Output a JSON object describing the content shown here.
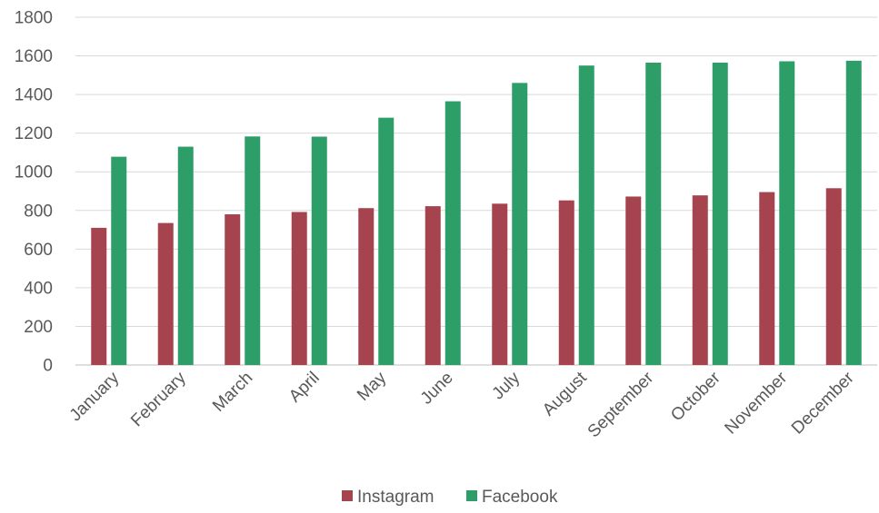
{
  "chart_data": {
    "type": "bar",
    "title": "",
    "xlabel": "",
    "ylabel": "",
    "ylim": [
      0,
      1800
    ],
    "yticks": [
      0,
      200,
      400,
      600,
      800,
      1000,
      1200,
      1400,
      1600,
      1800
    ],
    "grid": true,
    "legend_position": "bottom",
    "categories": [
      "January",
      "February",
      "March",
      "April",
      "May",
      "June",
      "July",
      "August",
      "September",
      "October",
      "November",
      "December"
    ],
    "series": [
      {
        "name": "Instagram",
        "color": "#a5434f",
        "values": [
          710,
          735,
          780,
          792,
          812,
          822,
          835,
          852,
          872,
          878,
          895,
          915
        ]
      },
      {
        "name": "Facebook",
        "color": "#2e9e69",
        "values": [
          1078,
          1130,
          1183,
          1182,
          1280,
          1365,
          1460,
          1550,
          1565,
          1565,
          1572,
          1575
        ]
      }
    ]
  }
}
